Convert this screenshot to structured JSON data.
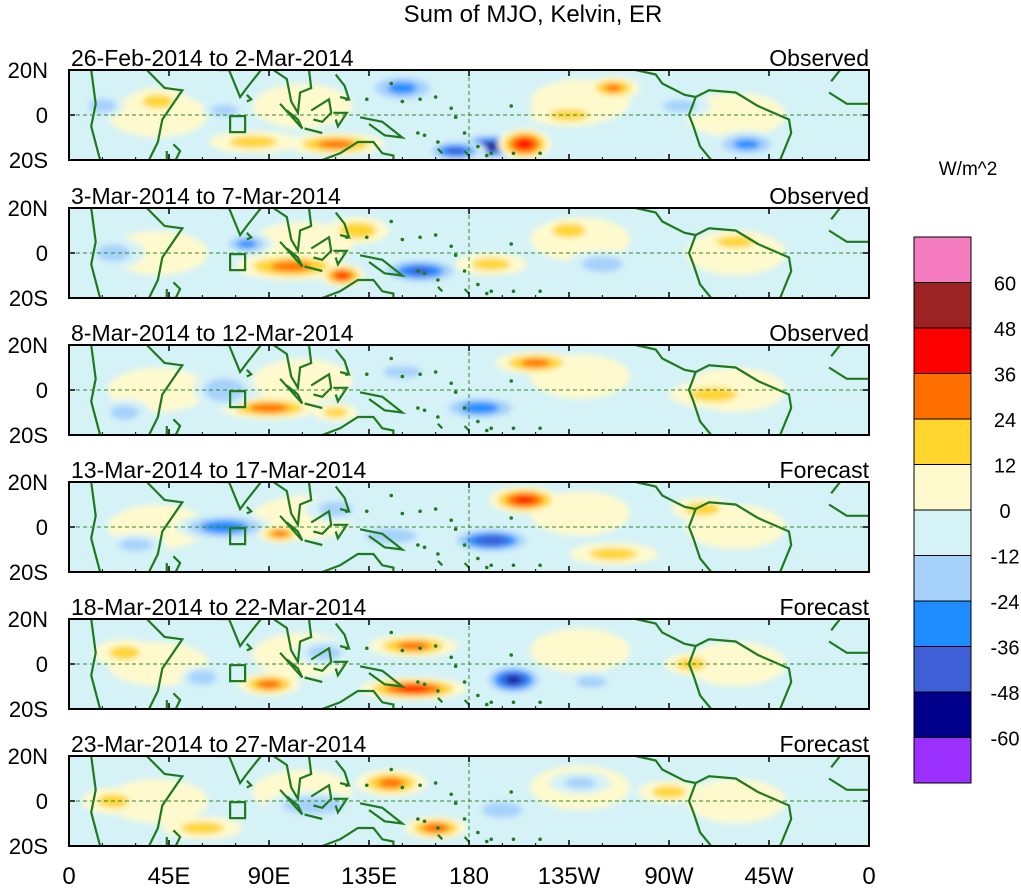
{
  "title": "Sum of MJO, Kelvin, ER",
  "units": "W/m^2",
  "colors": {
    "land": "#1f7a1f",
    "frame": "#000000",
    "dashed_ref": "#2e8b2e"
  },
  "x_axis": {
    "ticks": [
      {
        "label": "0",
        "lon": 0
      },
      {
        "label": "45E",
        "lon": 45
      },
      {
        "label": "90E",
        "lon": 90
      },
      {
        "label": "135E",
        "lon": 135
      },
      {
        "label": "180",
        "lon": 180
      },
      {
        "label": "135W",
        "lon": 225
      },
      {
        "label": "90W",
        "lon": 270
      },
      {
        "label": "45W",
        "lon": 315
      },
      {
        "label": "0",
        "lon": 360
      }
    ]
  },
  "y_axis": {
    "ticks": [
      {
        "label": "20N",
        "lat": 20
      },
      {
        "label": "0",
        "lat": 0
      },
      {
        "label": "20S",
        "lat": -20
      }
    ]
  },
  "colorbar": {
    "bins": [
      {
        "color": "#f57cc0",
        "label": ""
      },
      {
        "color": "#9b2323",
        "label": "60"
      },
      {
        "color": "#ff0000",
        "label": "48"
      },
      {
        "color": "#ff6f00",
        "label": "36"
      },
      {
        "color": "#ffd52e",
        "label": "24"
      },
      {
        "color": "#fffacd",
        "label": "12"
      },
      {
        "color": "#d5f2f7",
        "label": "0"
      },
      {
        "color": "#a6d2fb",
        "label": "-12"
      },
      {
        "color": "#1e8cff",
        "label": "-24"
      },
      {
        "color": "#3e5fd6",
        "label": "-36"
      },
      {
        "color": "#00008b",
        "label": "-48"
      },
      {
        "color": "#9b30ff",
        "label": "-60"
      }
    ]
  },
  "panels": [
    {
      "date": "26-Feb-2014 to 2-Mar-2014",
      "status": "Observed",
      "anomalies": [
        {
          "lon": 150,
          "lat": 12,
          "v": -26,
          "rx": 18,
          "ry": 7
        },
        {
          "lon": 190,
          "lat": -14,
          "v": -52,
          "rx": 18,
          "ry": 6
        },
        {
          "lon": 174,
          "lat": -16,
          "v": -40,
          "rx": 14,
          "ry": 5
        },
        {
          "lon": 205,
          "lat": -13,
          "v": 42,
          "rx": 12,
          "ry": 7
        },
        {
          "lon": 120,
          "lat": -13,
          "v": 26,
          "rx": 22,
          "ry": 5
        },
        {
          "lon": 83,
          "lat": -12,
          "v": 14,
          "rx": 20,
          "ry": 5
        },
        {
          "lon": 245,
          "lat": 12,
          "v": 24,
          "rx": 12,
          "ry": 5
        },
        {
          "lon": 70,
          "lat": 2,
          "v": -20,
          "rx": 10,
          "ry": 4
        },
        {
          "lon": 15,
          "lat": 4,
          "v": -20,
          "rx": 10,
          "ry": 5
        },
        {
          "lon": 305,
          "lat": -13,
          "v": -26,
          "rx": 16,
          "ry": 6
        },
        {
          "lon": 275,
          "lat": 4,
          "v": -14,
          "rx": 14,
          "ry": 5
        },
        {
          "lon": 225,
          "lat": 0,
          "v": 12,
          "rx": 18,
          "ry": 5
        },
        {
          "lon": 40,
          "lat": 6,
          "v": 12,
          "rx": 14,
          "ry": 6
        }
      ]
    },
    {
      "date": "3-Mar-2014 to 7-Mar-2014",
      "status": "Observed",
      "anomalies": [
        {
          "lon": 100,
          "lat": -6,
          "v": 26,
          "rx": 25,
          "ry": 6
        },
        {
          "lon": 123,
          "lat": -10,
          "v": 36,
          "rx": 10,
          "ry": 5
        },
        {
          "lon": 158,
          "lat": -8,
          "v": -38,
          "rx": 20,
          "ry": 6
        },
        {
          "lon": 80,
          "lat": 4,
          "v": -26,
          "rx": 12,
          "ry": 5
        },
        {
          "lon": 190,
          "lat": -5,
          "v": 14,
          "rx": 16,
          "ry": 5
        },
        {
          "lon": 225,
          "lat": 10,
          "v": 20,
          "rx": 12,
          "ry": 5
        },
        {
          "lon": 300,
          "lat": 5,
          "v": 14,
          "rx": 16,
          "ry": 5
        },
        {
          "lon": 130,
          "lat": 10,
          "v": 18,
          "rx": 14,
          "ry": 6
        },
        {
          "lon": 240,
          "lat": -5,
          "v": -16,
          "rx": 16,
          "ry": 6
        },
        {
          "lon": 20,
          "lat": 0,
          "v": -14,
          "rx": 14,
          "ry": 7
        }
      ]
    },
    {
      "date": "8-Mar-2014 to 12-Mar-2014",
      "status": "Observed",
      "anomalies": [
        {
          "lon": 90,
          "lat": -8,
          "v": 28,
          "rx": 22,
          "ry": 5
        },
        {
          "lon": 185,
          "lat": -8,
          "v": -30,
          "rx": 20,
          "ry": 6
        },
        {
          "lon": 210,
          "lat": 12,
          "v": 26,
          "rx": 18,
          "ry": 5
        },
        {
          "lon": 70,
          "lat": 0,
          "v": -22,
          "rx": 14,
          "ry": 8
        },
        {
          "lon": 150,
          "lat": 8,
          "v": -14,
          "rx": 16,
          "ry": 5
        },
        {
          "lon": 120,
          "lat": -10,
          "v": 14,
          "rx": 10,
          "ry": 4
        },
        {
          "lon": 290,
          "lat": -2,
          "v": 14,
          "rx": 20,
          "ry": 6
        },
        {
          "lon": 25,
          "lat": -10,
          "v": -14,
          "rx": 12,
          "ry": 6
        }
      ]
    },
    {
      "date": "13-Mar-2014 to 17-Mar-2014",
      "status": "Forecast",
      "anomalies": [
        {
          "lon": 70,
          "lat": 0,
          "v": -34,
          "rx": 22,
          "ry": 6
        },
        {
          "lon": 190,
          "lat": -6,
          "v": -44,
          "rx": 20,
          "ry": 6
        },
        {
          "lon": 205,
          "lat": 12,
          "v": 38,
          "rx": 16,
          "ry": 6
        },
        {
          "lon": 95,
          "lat": -3,
          "v": 26,
          "rx": 10,
          "ry": 4
        },
        {
          "lon": 145,
          "lat": -4,
          "v": -22,
          "rx": 18,
          "ry": 5
        },
        {
          "lon": 120,
          "lat": 8,
          "v": -14,
          "rx": 14,
          "ry": 6
        },
        {
          "lon": 285,
          "lat": 8,
          "v": 16,
          "rx": 14,
          "ry": 5
        },
        {
          "lon": 245,
          "lat": -12,
          "v": 14,
          "rx": 20,
          "ry": 5
        },
        {
          "lon": 30,
          "lat": -8,
          "v": -14,
          "rx": 14,
          "ry": 5
        }
      ]
    },
    {
      "date": "18-Mar-2014 to 22-Mar-2014",
      "status": "Forecast",
      "anomalies": [
        {
          "lon": 155,
          "lat": -11,
          "v": 38,
          "rx": 24,
          "ry": 5
        },
        {
          "lon": 200,
          "lat": -7,
          "v": -50,
          "rx": 14,
          "ry": 7
        },
        {
          "lon": 90,
          "lat": -9,
          "v": 28,
          "rx": 14,
          "ry": 5
        },
        {
          "lon": 155,
          "lat": 8,
          "v": 26,
          "rx": 20,
          "ry": 5
        },
        {
          "lon": 115,
          "lat": 5,
          "v": -14,
          "rx": 14,
          "ry": 6
        },
        {
          "lon": 60,
          "lat": -6,
          "v": -22,
          "rx": 10,
          "ry": 5
        },
        {
          "lon": 280,
          "lat": 0,
          "v": 16,
          "rx": 12,
          "ry": 5
        },
        {
          "lon": 235,
          "lat": -8,
          "v": -12,
          "rx": 14,
          "ry": 5
        },
        {
          "lon": 25,
          "lat": 5,
          "v": 12,
          "rx": 14,
          "ry": 6
        }
      ]
    },
    {
      "date": "23-Mar-2014 to 27-Mar-2014",
      "status": "Forecast",
      "anomalies": [
        {
          "lon": 145,
          "lat": 8,
          "v": 26,
          "rx": 16,
          "ry": 6
        },
        {
          "lon": 165,
          "lat": -12,
          "v": 30,
          "rx": 14,
          "ry": 5
        },
        {
          "lon": 110,
          "lat": -2,
          "v": -20,
          "rx": 22,
          "ry": 6
        },
        {
          "lon": 195,
          "lat": -4,
          "v": -16,
          "rx": 16,
          "ry": 6
        },
        {
          "lon": 60,
          "lat": -12,
          "v": 14,
          "rx": 18,
          "ry": 5
        },
        {
          "lon": 270,
          "lat": 4,
          "v": 14,
          "rx": 14,
          "ry": 5
        },
        {
          "lon": 230,
          "lat": 8,
          "v": -12,
          "rx": 14,
          "ry": 5
        },
        {
          "lon": 20,
          "lat": 0,
          "v": 12,
          "rx": 14,
          "ry": 6
        }
      ]
    }
  ]
}
